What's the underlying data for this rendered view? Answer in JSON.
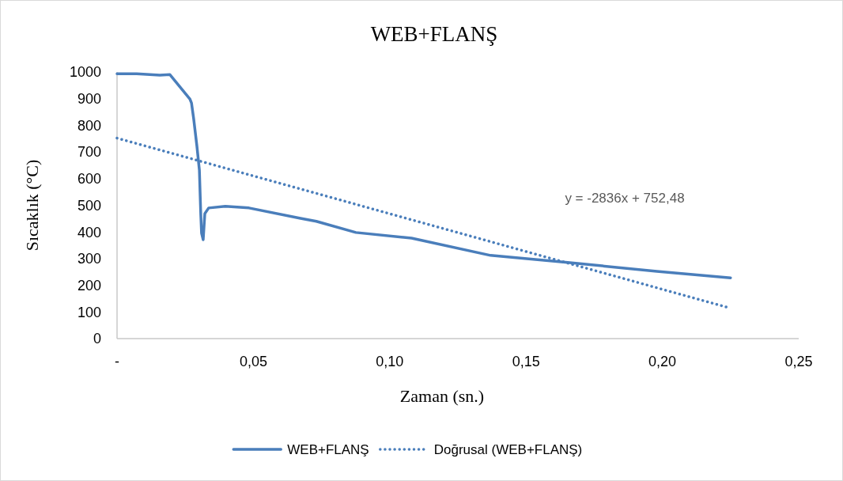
{
  "chart_data": {
    "type": "line",
    "title": "WEB+FLANŞ",
    "xlabel": "Zaman (sn.)",
    "ylabel": "Sıcaklık (°C)",
    "series": [
      {
        "name": "WEB+FLANŞ",
        "color": "#4a7ebb",
        "line_style": "solid",
        "x": [
          0,
          0.0072,
          0.0157,
          0.0194,
          0.0267,
          0.0273,
          0.0281,
          0.0293,
          0.0302,
          0.0307,
          0.031,
          0.0316,
          0.0322,
          0.0336,
          0.0397,
          0.0484,
          0.0673,
          0.0731,
          0.0876,
          0.108,
          0.137,
          0.166,
          0.198,
          0.225
        ],
        "values": [
          993,
          993,
          988,
          990,
          899,
          884,
          825,
          721,
          632,
          469,
          395,
          371,
          469,
          490,
          496,
          490,
          451,
          440,
          398,
          377,
          312,
          285,
          252,
          228
        ]
      },
      {
        "name": "Doğrusal (WEB+FLANŞ)",
        "color": "#4a7ebb",
        "line_style": "dotted",
        "x": [
          0,
          0.225
        ],
        "values": [
          752,
          114
        ]
      }
    ],
    "annotations": [
      "y = -2836x + 752,48"
    ],
    "xlim": [
      0,
      0.25
    ],
    "xticks": [
      {
        "value": 0,
        "label": "-"
      },
      {
        "value": 0.05,
        "label": "0,05"
      },
      {
        "value": 0.1,
        "label": "0,10"
      },
      {
        "value": 0.15,
        "label": "0,15"
      },
      {
        "value": 0.2,
        "label": "0,20"
      },
      {
        "value": 0.25,
        "label": "0,25"
      }
    ],
    "ylim": [
      0,
      1000
    ],
    "yticks": [
      0,
      100,
      200,
      300,
      400,
      500,
      600,
      700,
      800,
      900,
      1000
    ],
    "grid": false,
    "legend": "bottom"
  }
}
